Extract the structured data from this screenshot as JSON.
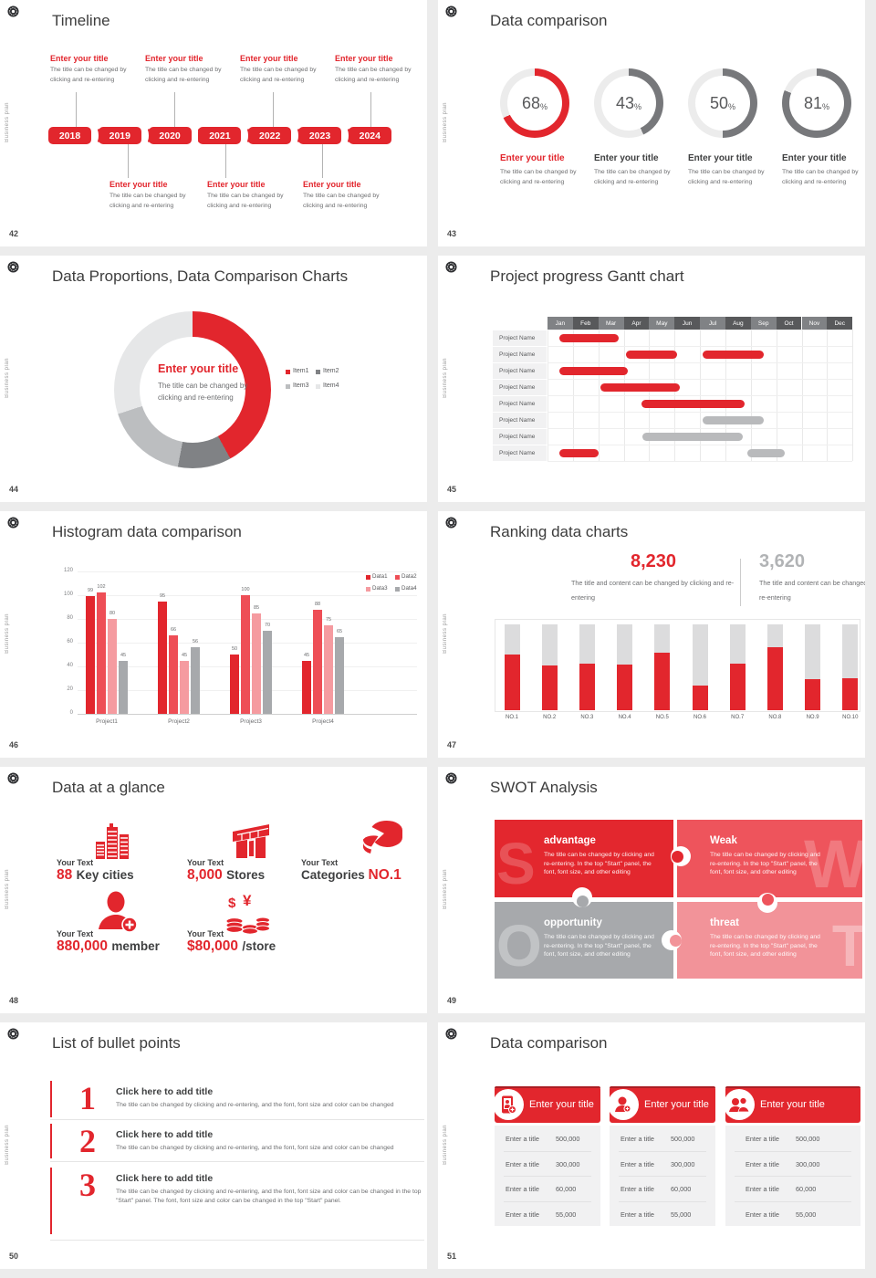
{
  "accent": "#e2262d",
  "chrome": {
    "brand": "Business plan"
  },
  "slides": {
    "timeline": {
      "number": "42",
      "title": "Timeline",
      "item_title": "Enter your title",
      "item_desc": "The title can be changed by clicking and re-entering",
      "years": [
        "2018",
        "2019",
        "2020",
        "2021",
        "2022",
        "2023",
        "2024"
      ]
    },
    "rings": {
      "number": "43",
      "title": "Data comparison",
      "item_title": "Enter your title",
      "item_desc": "The title can be changed by clicking and re-entering",
      "items": [
        {
          "percent": 68,
          "color": "#e2262d",
          "highlight": true
        },
        {
          "percent": 43,
          "color": "#77787b",
          "highlight": false
        },
        {
          "percent": 50,
          "color": "#77787b",
          "highlight": false
        },
        {
          "percent": 81,
          "color": "#77787b",
          "highlight": false
        }
      ]
    },
    "donut": {
      "number": "44",
      "title": "Data Proportions, Data Comparison Charts",
      "center_title": "Enter your title",
      "center_desc": "The title can be changed by clicking and re-entering",
      "chart": {
        "type": "pie",
        "segments": [
          {
            "label": "Item1",
            "value": 42,
            "color": "#e2262d"
          },
          {
            "label": "Item2",
            "value": 11,
            "color": "#808285"
          },
          {
            "label": "Item3",
            "value": 17,
            "color": "#bcbec0"
          },
          {
            "label": "Item4",
            "value": 30,
            "color": "#e6e7e8"
          }
        ]
      }
    },
    "gantt": {
      "number": "45",
      "title": "Project progress Gantt chart",
      "row_label": "Project Name",
      "months": [
        "Jan",
        "Feb",
        "Mar",
        "Apr",
        "May",
        "Jun",
        "Jul",
        "Aug",
        "Sep",
        "Oct",
        "Nov",
        "Dec"
      ],
      "bars": [
        {
          "row": 0,
          "start": 0.45,
          "end": 2.8,
          "color": "red"
        },
        {
          "row": 1,
          "start": 3.1,
          "end": 5.1,
          "color": "red"
        },
        {
          "row": 1,
          "start": 6.1,
          "end": 8.5,
          "color": "red"
        },
        {
          "row": 2,
          "start": 0.45,
          "end": 3.15,
          "color": "red"
        },
        {
          "row": 3,
          "start": 2.1,
          "end": 5.2,
          "color": "red"
        },
        {
          "row": 4,
          "start": 3.7,
          "end": 7.75,
          "color": "red"
        },
        {
          "row": 5,
          "start": 6.1,
          "end": 8.5,
          "color": "gray"
        },
        {
          "row": 6,
          "start": 3.75,
          "end": 7.7,
          "color": "gray"
        },
        {
          "row": 7,
          "start": 0.45,
          "end": 2.0,
          "color": "red"
        },
        {
          "row": 7,
          "start": 7.85,
          "end": 9.35,
          "color": "gray"
        }
      ]
    },
    "histogram": {
      "number": "46",
      "title": "Histogram data comparison",
      "chart": {
        "type": "bar",
        "categories": [
          "Project1",
          "Project2",
          "Project3",
          "Project4"
        ],
        "ymax": 120,
        "yticks": [
          0,
          20,
          40,
          60,
          80,
          100,
          120
        ],
        "series": [
          {
            "name": "Data1",
            "color": "#e2262d",
            "values": [
              99,
              95,
              50,
              45
            ]
          },
          {
            "name": "Data2",
            "color": "#ee4e56",
            "values": [
              102,
              66,
              100,
              88
            ]
          },
          {
            "name": "Data3",
            "color": "#f59ba0",
            "values": [
              80,
              45,
              85,
              75
            ]
          },
          {
            "name": "Data4",
            "color": "#a7a9ac",
            "values": [
              45,
              56,
              70,
              65
            ]
          }
        ]
      }
    },
    "ranking": {
      "number": "47",
      "title": "Ranking data charts",
      "stat1": {
        "value": "8,230",
        "desc": "The title and content can be changed by clicking and re-entering"
      },
      "stat2": {
        "value": "3,620",
        "desc": "The title and content can be changed by clicking and re-entering"
      },
      "chart": {
        "type": "bar",
        "categories": [
          "NO.1",
          "NO.2",
          "NO.3",
          "NO.4",
          "NO.5",
          "NO.6",
          "NO.7",
          "NO.8",
          "NO.9",
          "NO.10"
        ],
        "values_percent": [
          65,
          52,
          54,
          53,
          67,
          29,
          54,
          73,
          36,
          37
        ]
      }
    },
    "glance": {
      "number": "48",
      "title": "Data at a glance",
      "label": "Your Text",
      "items": [
        {
          "icon": "city-icon",
          "value": "88",
          "unit": "Key cities"
        },
        {
          "icon": "store-icon",
          "value": "8,000",
          "unit": "Stores"
        },
        {
          "icon": "pie-icon",
          "prefix": "Categories",
          "value": "NO.1"
        },
        {
          "icon": "member-icon",
          "value": "880,000",
          "unit": "member"
        },
        {
          "icon": "coins-icon",
          "value": "$80,000",
          "unit": "/store"
        }
      ]
    },
    "swot": {
      "number": "49",
      "title": "SWOT Analysis",
      "desc": "The title can be changed by clicking and re-entering. In the top \"Start\" panel, the font, font size, and other editing",
      "quads": [
        {
          "letter": "S",
          "title": "advantage",
          "color": "#e3272e",
          "side": "left"
        },
        {
          "letter": "W",
          "title": "Weak",
          "color": "#ee545c",
          "side": "right"
        },
        {
          "letter": "O",
          "title": "opportunity",
          "color": "#a7a9ac",
          "side": "left"
        },
        {
          "letter": "T",
          "title": "threat",
          "color": "#f29399",
          "side": "right"
        }
      ]
    },
    "bullets": {
      "number": "50",
      "title": "List of bullet points",
      "items": [
        {
          "num": "1",
          "title": "Click here to add title",
          "desc": "The title can be changed by clicking and re-entering, and the font, font size and color can be changed"
        },
        {
          "num": "2",
          "title": "Click here to add title",
          "desc": "The title can be changed by clicking and re-entering, and the font, font size and color can be changed"
        },
        {
          "num": "3",
          "title": "Click here to add title",
          "desc": "The title can be changed by clicking and re-entering, and the font, font size and color can be changed in the top \"Start\" panel. The font, font size and color can be changed in the top \"Start\" panel."
        }
      ]
    },
    "cards": {
      "number": "51",
      "title": "Data comparison",
      "header": "Enter your title",
      "row_label": "Enter a title",
      "values": [
        "500,000",
        "300,000",
        "60,000",
        "55,000"
      ],
      "icons": [
        "tablet-user-icon",
        "user-plus-icon",
        "users-icon"
      ]
    }
  }
}
